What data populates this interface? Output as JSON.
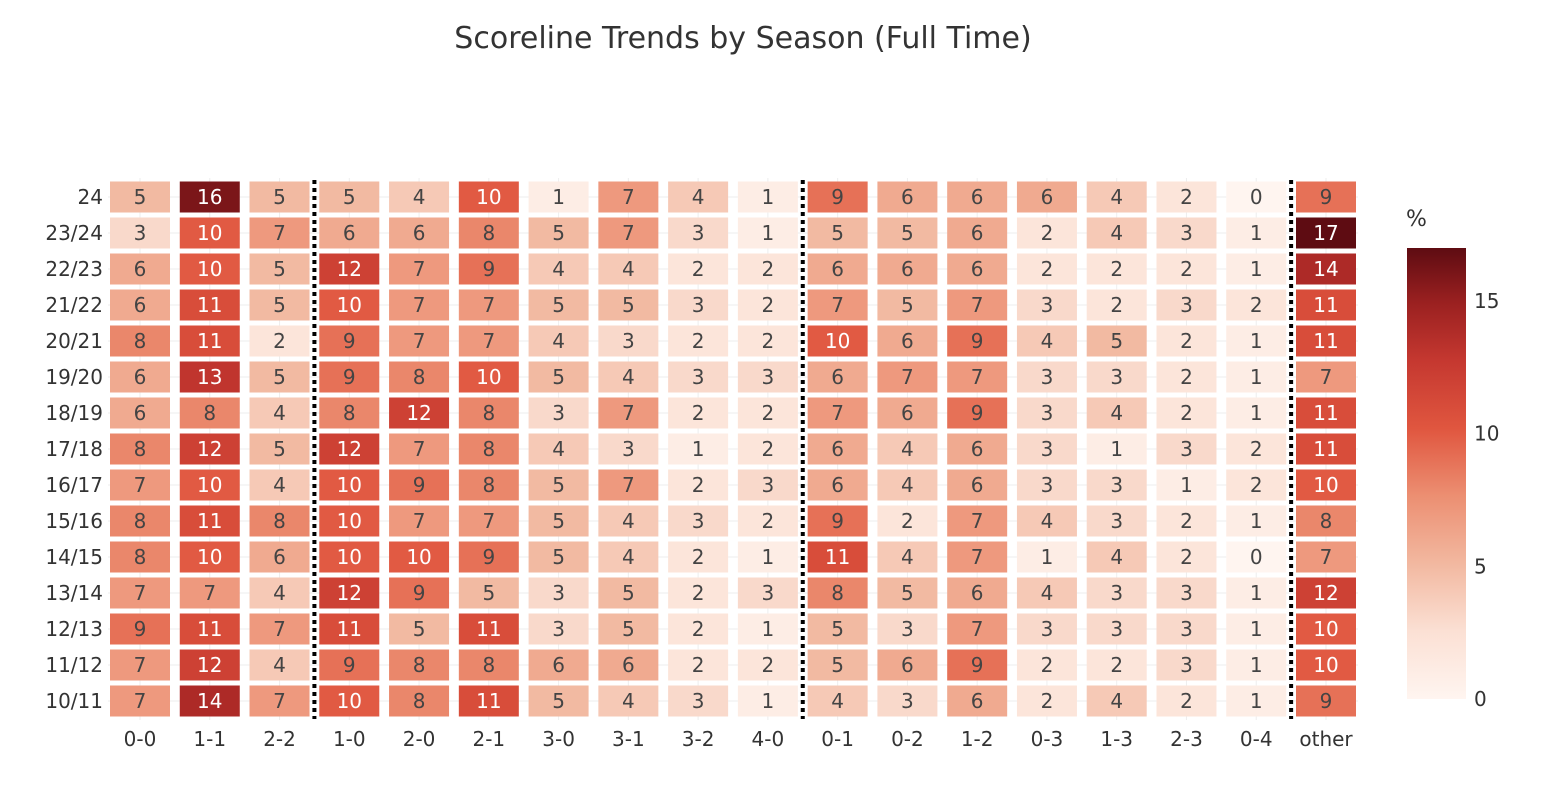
{
  "chart_data": {
    "type": "heatmap",
    "title": "Scoreline Trends by Season (Full Time)",
    "colorbar_title": "%",
    "colorbar_ticks": [
      0,
      5,
      10,
      15
    ],
    "zrange": [
      0,
      17
    ],
    "x": [
      "0-0",
      "1-1",
      "2-2",
      "1-0",
      "2-0",
      "2-1",
      "3-0",
      "3-1",
      "3-2",
      "4-0",
      "0-1",
      "0-2",
      "1-2",
      "0-3",
      "1-3",
      "2-3",
      "0-4",
      "other"
    ],
    "y": [
      "24",
      "23/24",
      "22/23",
      "21/22",
      "20/21",
      "19/20",
      "18/19",
      "17/18",
      "16/17",
      "15/16",
      "14/15",
      "13/14",
      "12/13",
      "11/12",
      "10/11"
    ],
    "separators_after": [
      "2-2",
      "4-0",
      "0-4"
    ],
    "z": [
      [
        5,
        16,
        5,
        5,
        4,
        10,
        1,
        7,
        4,
        1,
        9,
        6,
        6,
        6,
        4,
        2,
        0,
        9
      ],
      [
        3,
        10,
        7,
        6,
        6,
        8,
        5,
        7,
        3,
        1,
        5,
        5,
        6,
        2,
        4,
        3,
        1,
        17
      ],
      [
        6,
        10,
        5,
        12,
        7,
        9,
        4,
        4,
        2,
        2,
        6,
        6,
        6,
        2,
        2,
        2,
        1,
        14
      ],
      [
        6,
        11,
        5,
        10,
        7,
        7,
        5,
        5,
        3,
        2,
        7,
        5,
        7,
        3,
        2,
        3,
        2,
        11
      ],
      [
        8,
        11,
        2,
        9,
        7,
        7,
        4,
        3,
        2,
        2,
        10,
        6,
        9,
        4,
        5,
        2,
        1,
        11
      ],
      [
        6,
        13,
        5,
        9,
        8,
        10,
        5,
        4,
        3,
        3,
        6,
        7,
        7,
        3,
        3,
        2,
        1,
        7
      ],
      [
        6,
        8,
        4,
        8,
        12,
        8,
        3,
        7,
        2,
        2,
        7,
        6,
        9,
        3,
        4,
        2,
        1,
        11
      ],
      [
        8,
        12,
        5,
        12,
        7,
        8,
        4,
        3,
        1,
        2,
        6,
        4,
        6,
        3,
        1,
        3,
        2,
        11
      ],
      [
        7,
        10,
        4,
        10,
        9,
        8,
        5,
        7,
        2,
        3,
        6,
        4,
        6,
        3,
        3,
        1,
        2,
        10
      ],
      [
        8,
        11,
        8,
        10,
        7,
        7,
        5,
        4,
        3,
        2,
        9,
        2,
        7,
        4,
        3,
        2,
        1,
        8
      ],
      [
        8,
        10,
        6,
        10,
        10,
        9,
        5,
        4,
        2,
        1,
        11,
        4,
        7,
        1,
        4,
        2,
        0,
        7
      ],
      [
        7,
        7,
        4,
        12,
        9,
        5,
        3,
        5,
        2,
        3,
        8,
        5,
        6,
        4,
        3,
        3,
        1,
        12
      ],
      [
        9,
        11,
        7,
        11,
        5,
        11,
        3,
        5,
        2,
        1,
        5,
        3,
        7,
        3,
        3,
        3,
        1,
        10
      ],
      [
        7,
        12,
        4,
        9,
        8,
        8,
        6,
        6,
        2,
        2,
        5,
        6,
        9,
        2,
        2,
        3,
        1,
        10
      ],
      [
        7,
        14,
        7,
        10,
        8,
        11,
        5,
        4,
        3,
        1,
        4,
        3,
        6,
        2,
        4,
        2,
        1,
        9
      ]
    ]
  }
}
